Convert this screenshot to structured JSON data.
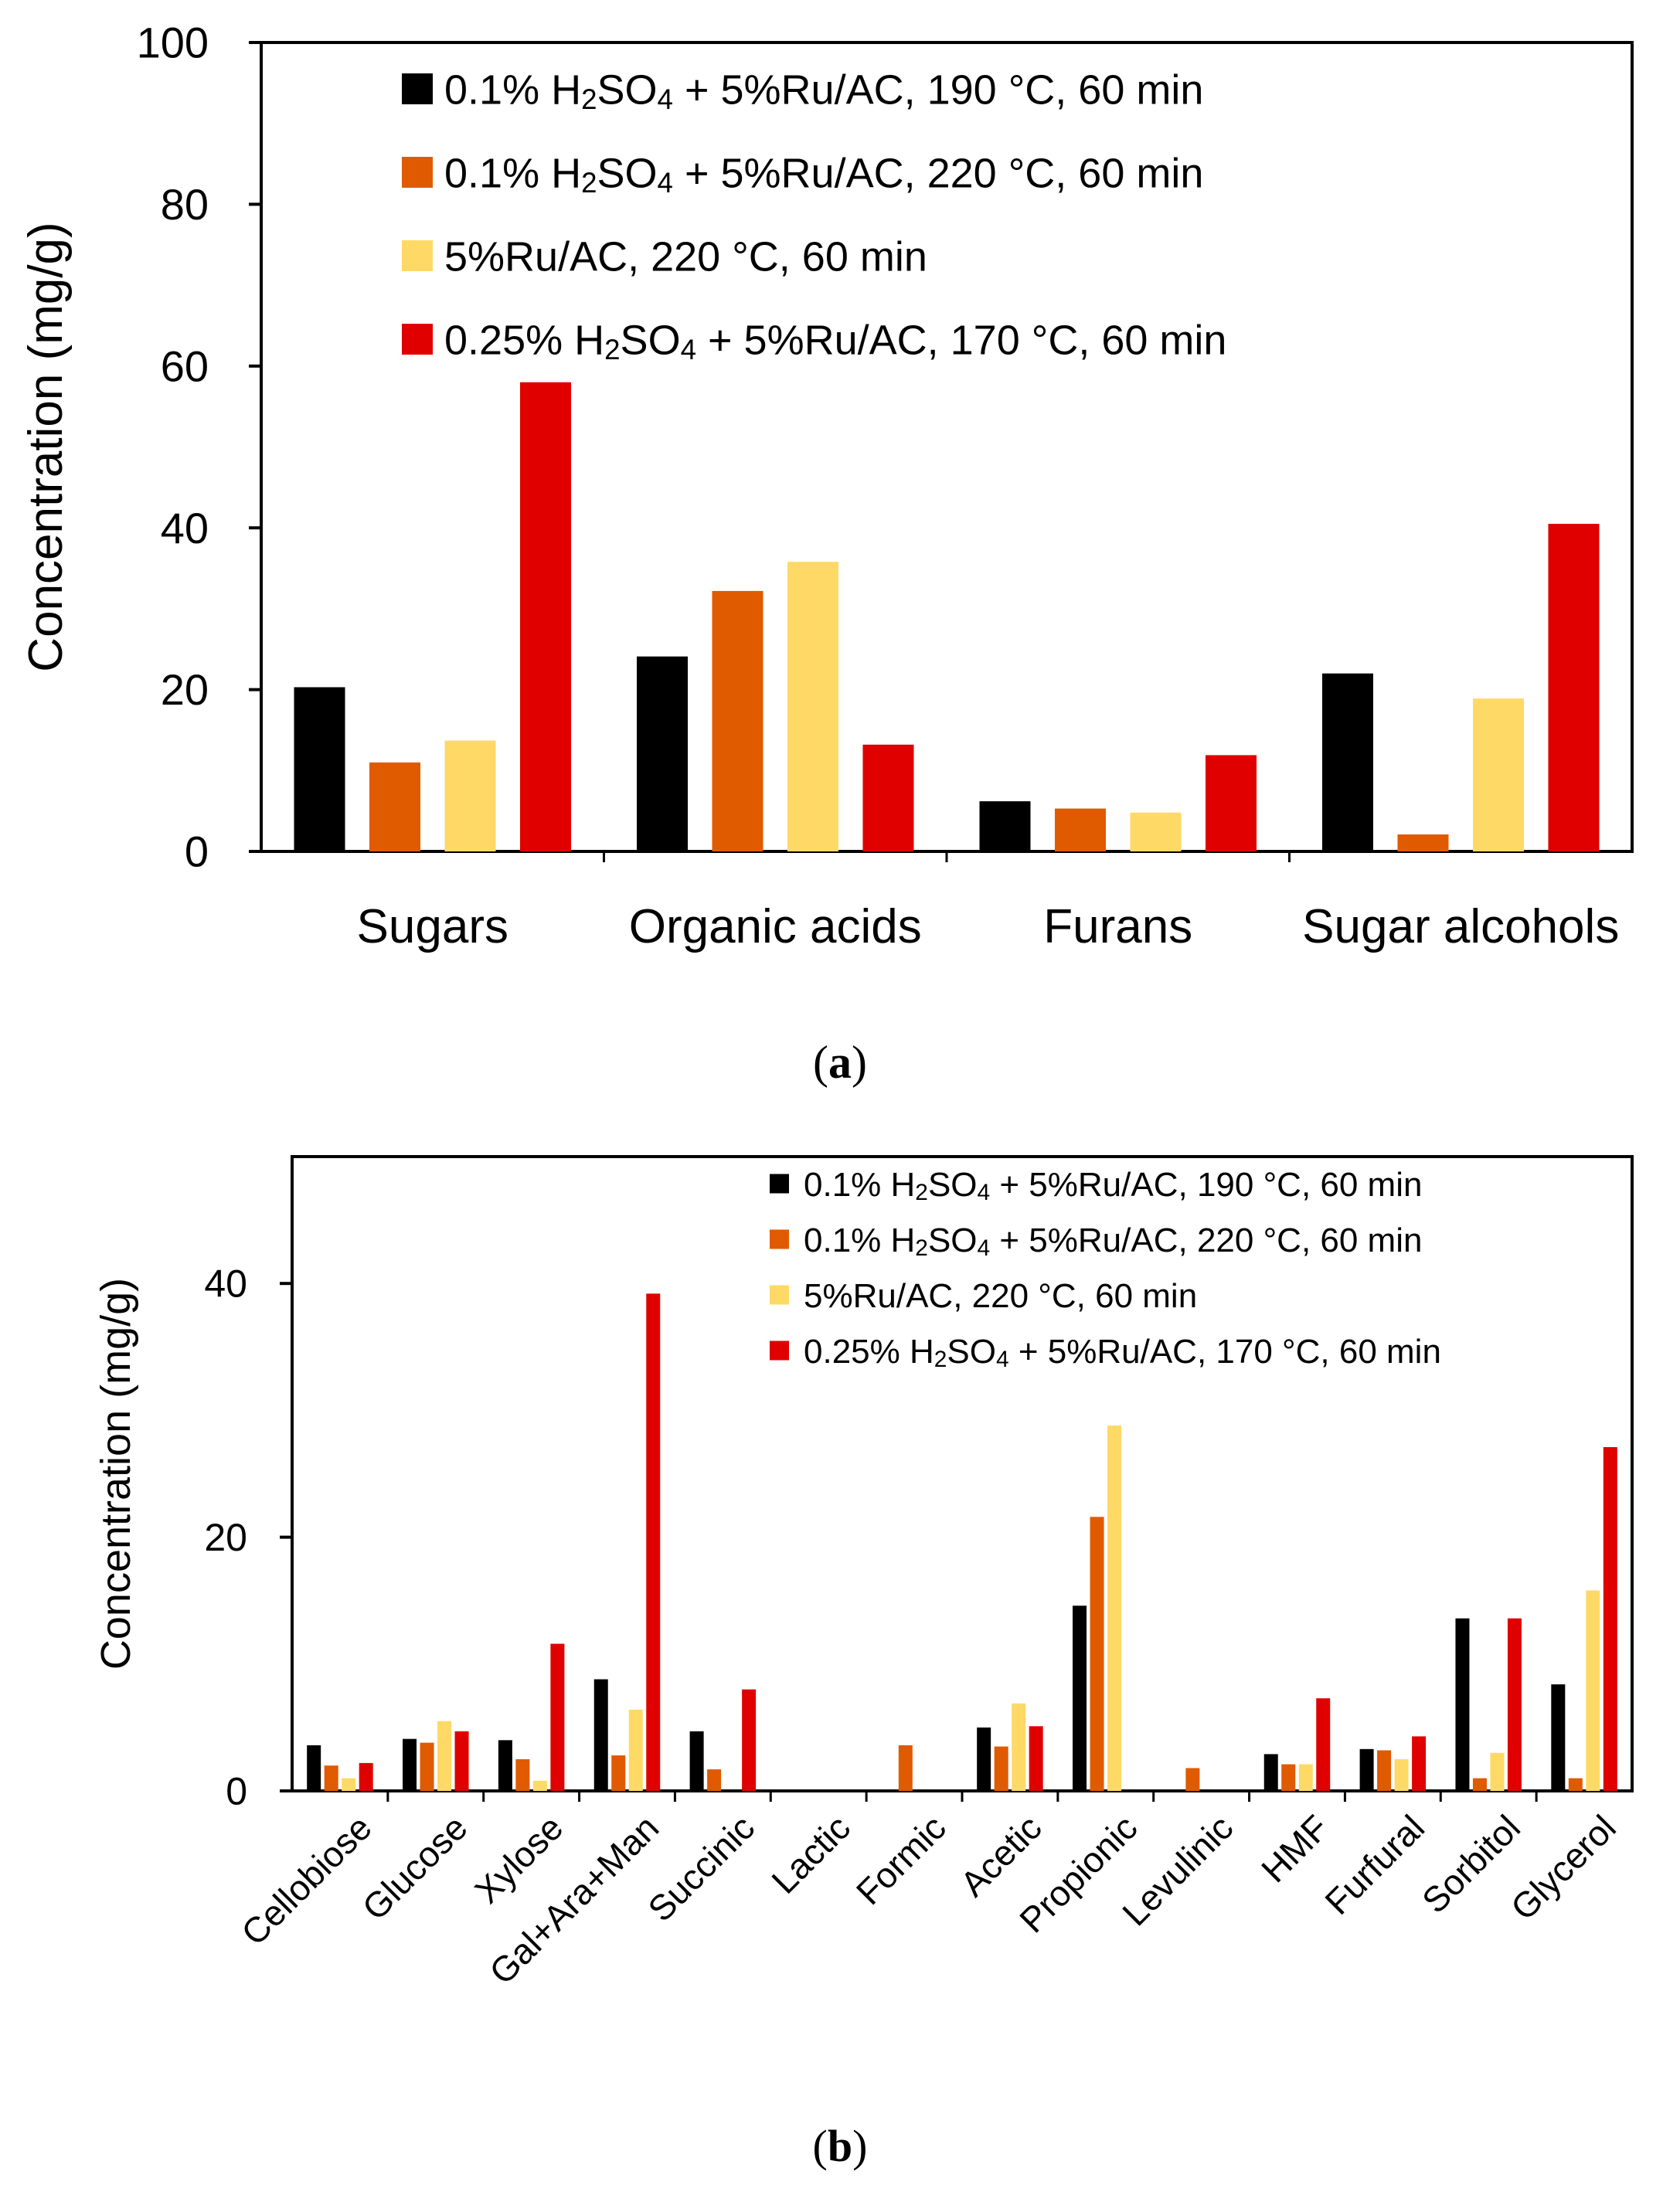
{
  "colors": {
    "s1": "#000000",
    "s2": "#E05A00",
    "s3": "#FFD966",
    "s4": "#E00000"
  },
  "chart_data": [
    {
      "id": "a",
      "type": "bar",
      "panel_label": "a",
      "ylabel": "Concentration (mg/g)",
      "ylim": [
        0,
        100
      ],
      "yticks": [
        0,
        20,
        40,
        60,
        80,
        100
      ],
      "categories": [
        "Sugars",
        "Organic acids",
        "Furans",
        "Sugar alcohols"
      ],
      "legend": {
        "position": "top-right",
        "parts": [
          [
            "0.1% H",
            "2",
            "SO",
            "4",
            " + 5%Ru/AC, 190 °C, 60 min"
          ],
          [
            "0.1% H",
            "2",
            "SO",
            "4",
            "  + 5%Ru/AC, 220 °C, 60 min"
          ],
          [
            "5%Ru/AC, 220 °C, 60 min"
          ],
          [
            "0.25% H",
            "2",
            "SO",
            "4",
            "  + 5%Ru/AC, 170 °C, 60 min"
          ]
        ]
      },
      "series": [
        {
          "name": "0.1% H₂SO₄ + 5%Ru/AC, 190 °C, 60 min",
          "color": "s1",
          "values": [
            20.3,
            24.1,
            6.2,
            22.0
          ]
        },
        {
          "name": "0.1% H₂SO₄ + 5%Ru/AC, 220 °C, 60 min",
          "color": "s2",
          "values": [
            11.0,
            32.2,
            5.3,
            2.1
          ]
        },
        {
          "name": "5%Ru/AC, 220 °C, 60 min",
          "color": "s3",
          "values": [
            13.7,
            35.8,
            4.8,
            18.9
          ]
        },
        {
          "name": "0.25% H₂SO₄ + 5%Ru/AC, 170 °C, 60 min",
          "color": "s4",
          "values": [
            58.0,
            13.2,
            11.9,
            40.5
          ]
        }
      ]
    },
    {
      "id": "b",
      "type": "bar",
      "panel_label": "b",
      "ylabel": "Concentration (mg/g)",
      "ylim": [
        0,
        50
      ],
      "yticks": [
        0,
        20,
        40
      ],
      "categories": [
        "Cellobiose",
        "Glucose",
        "Xylose",
        "Gal+Ara+Man",
        "Succinic",
        "Lactic",
        "Formic",
        "Acetic",
        "Propionic",
        "Levulinic",
        "HMF",
        "Furfural",
        "Sorbitol",
        "Glycerol"
      ],
      "legend": {
        "position": "top-right",
        "parts": [
          [
            "0.1% H",
            "2",
            "SO",
            "4",
            " + 5%Ru/AC, 190 °C, 60 min"
          ],
          [
            "0.1% H",
            "2",
            "SO",
            "4",
            "  + 5%Ru/AC, 220 °C, 60 min"
          ],
          [
            "5%Ru/AC, 220 °C, 60 min"
          ],
          [
            "0.25% H",
            "2",
            "SO",
            "4",
            "  + 5%Ru/AC, 170 °C, 60 min"
          ]
        ]
      },
      "series": [
        {
          "name": "0.1% H₂SO₄ + 5%Ru/AC, 190 °C, 60 min",
          "color": "s1",
          "values": [
            3.6,
            4.1,
            4.0,
            8.8,
            4.7,
            0,
            0,
            5.0,
            14.6,
            0,
            2.9,
            3.3,
            13.6,
            8.4
          ]
        },
        {
          "name": "0.1% H₂SO₄ + 5%Ru/AC, 220 °C, 60 min",
          "color": "s2",
          "values": [
            2.0,
            3.8,
            2.5,
            2.8,
            1.7,
            0,
            3.6,
            3.5,
            21.6,
            1.8,
            2.1,
            3.2,
            1.0,
            1.0
          ]
        },
        {
          "name": "5%Ru/AC, 220 °C, 60 min",
          "color": "s3",
          "values": [
            1.0,
            5.5,
            0.8,
            6.4,
            0,
            0,
            0,
            6.9,
            28.8,
            0,
            2.1,
            2.5,
            3.0,
            15.8
          ]
        },
        {
          "name": "0.25% H₂SO₄ + 5%Ru/AC, 170 °C, 60 min",
          "color": "s4",
          "values": [
            2.2,
            4.7,
            11.6,
            39.2,
            8.0,
            0,
            0,
            5.1,
            0,
            0,
            7.3,
            4.3,
            13.6,
            27.1
          ]
        }
      ]
    }
  ]
}
